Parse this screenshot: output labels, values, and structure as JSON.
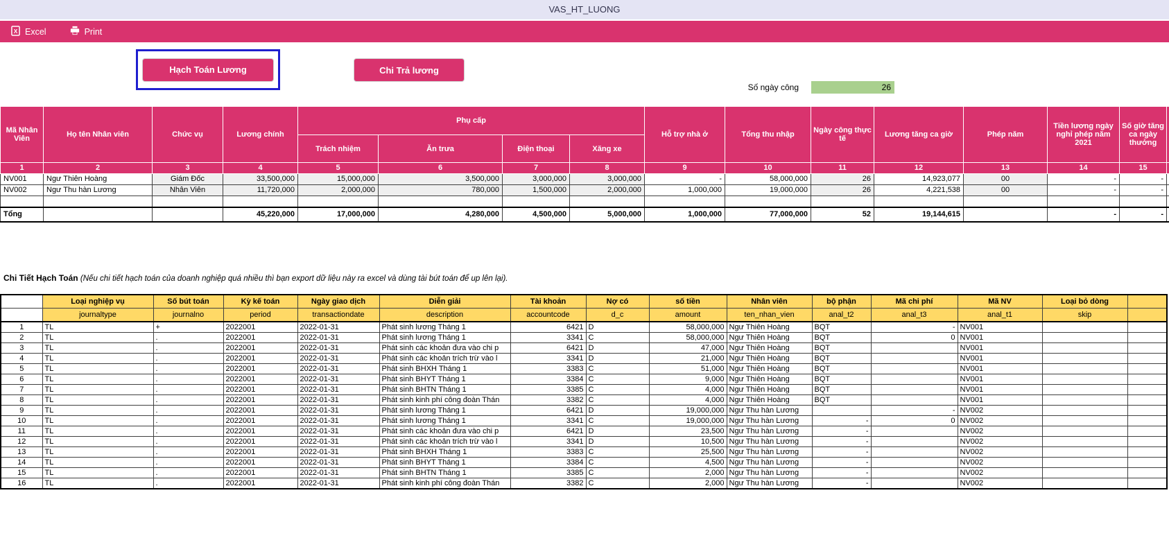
{
  "window": {
    "title": "VAS_HT_LUONG"
  },
  "toolbar": {
    "excel_label": "Excel",
    "print_label": "Print"
  },
  "actions": {
    "hach_toan_luong": "Hạch Toán Lương",
    "chi_tra_luong": "Chi Trả lương"
  },
  "work_days": {
    "label": "Số ngày công",
    "value": "26"
  },
  "colors": {
    "accent_pink": "#d9336e",
    "title_bar_lavender": "#e4e4f4",
    "input_green": "#a9d08e",
    "header_yellow": "#ffd966",
    "focus_blue": "#1f1fcf",
    "shaded_cell_gray": "#efefef"
  },
  "salary_table": {
    "col_numbers": [
      "1",
      "2",
      "3",
      "4",
      "5",
      "6",
      "7",
      "8",
      "9",
      "10",
      "11",
      "12",
      "13",
      "14",
      "15"
    ],
    "headers": {
      "ma_nhan_vien": "Mã Nhân Viên",
      "ho_ten_nhan_vien": "Họ tên Nhân viên",
      "chuc_vu": "Chức vụ",
      "luong_chinh": "Lương chính",
      "phu_cap": "Phụ cấp",
      "trach_nhiem": "Trách nhiệm",
      "an_trua": "Ăn trưa",
      "dien_thoai": "Điện thoại",
      "xang_xe": "Xăng xe",
      "ho_tro_nha_o": "Hỗ trợ nhà ở",
      "tong_thu_nhap": "Tổng thu nhập",
      "ngay_cong_thuc_te": "Ngày công thực tế",
      "luong_tang_ca_gio": "Lương tăng ca giờ",
      "phep_nam": "Phép năm",
      "tien_luong_ngay_nghi_phep": "Tiền lương ngày nghỉ phép năm 2021",
      "so_gio_tang_ca_ngay_thuong": "Số giờ tăng ca ngày thưởng"
    },
    "rows": [
      {
        "cells": [
          "NV001",
          "Ngư Thiên Hoàng",
          "Giám Đốc",
          "33,500,000",
          "15,000,000",
          "3,500,000",
          "3,000,000",
          "3,000,000",
          "-",
          "58,000,000",
          "26",
          "14,923,077",
          "00",
          "-",
          "-"
        ]
      },
      {
        "cells": [
          "NV002",
          "Ngư Thu hàn Lương",
          "Nhân Viên",
          "11,720,000",
          "2,000,000",
          "780,000",
          "1,500,000",
          "2,000,000",
          "1,000,000",
          "19,000,000",
          "26",
          "4,221,538",
          "00",
          "-",
          "-"
        ]
      },
      {
        "cells": [
          "",
          "",
          "",
          "",
          "",
          "",
          "",
          "",
          "",
          "",
          "",
          "",
          "",
          "",
          ""
        ]
      }
    ],
    "total_row": {
      "cells": [
        "Tổng",
        "",
        "",
        "45,220,000",
        "17,000,000",
        "4,280,000",
        "4,500,000",
        "5,000,000",
        "1,000,000",
        "77,000,000",
        "52",
        "19,144,615",
        "",
        "-",
        "-"
      ]
    }
  },
  "detail_section": {
    "title": "Chi Tiết Hạch Toán",
    "note": "(Nếu chi tiết hạch toán của doanh nghiệp quá nhiều thì bạn export dữ liệu này ra excel và dùng tài bút toán để up lên lại)."
  },
  "detail_table": {
    "header_labels": [
      "Loại nghiệp vụ",
      "Số bút toán",
      "Kỳ kế toán",
      "Ngày giao dịch",
      "Diễn giải",
      "Tài khoản",
      "Nợ có",
      "số tiền",
      "Nhân viên",
      "bộ phận",
      "Mã chi phí",
      "Mã NV",
      "Loại bỏ dòng"
    ],
    "field_names": [
      "journaltype",
      "journalno",
      "period",
      "transactiondate",
      "description",
      "accountcode",
      "d_c",
      "amount",
      "ten_nhan_vien",
      "anal_t2",
      "anal_t3",
      "anal_t1",
      "skip"
    ],
    "rows": [
      {
        "num": "1",
        "journaltype": "TL",
        "journalno": "+",
        "period": "2022001",
        "transactiondate": "2022-01-31",
        "description": "Phát sinh lương Tháng 1",
        "accountcode": "6421",
        "d_c": "D",
        "amount": "58,000,000",
        "ten_nhan_vien": "Ngư Thiên Hoàng",
        "anal_t2": "BQT",
        "anal_t3": "-",
        "anal_t1": "NV001",
        "skip": ""
      },
      {
        "num": "2",
        "journaltype": "TL",
        "journalno": ".",
        "period": "2022001",
        "transactiondate": "2022-01-31",
        "description": "Phát sinh lương Tháng 1",
        "accountcode": "3341",
        "d_c": "C",
        "amount": "58,000,000",
        "ten_nhan_vien": "Ngư Thiên Hoàng",
        "anal_t2": "BQT",
        "anal_t3": "0",
        "anal_t1": "NV001",
        "skip": ""
      },
      {
        "num": "3",
        "journaltype": "TL",
        "journalno": ".",
        "period": "2022001",
        "transactiondate": "2022-01-31",
        "description": "Phát sinh các khoản đưa vào chi p",
        "accountcode": "6421",
        "d_c": "D",
        "amount": "47,000",
        "ten_nhan_vien": "Ngư Thiên Hoàng",
        "anal_t2": "BQT",
        "anal_t3": "",
        "anal_t1": "NV001",
        "skip": ""
      },
      {
        "num": "4",
        "journaltype": "TL",
        "journalno": ".",
        "period": "2022001",
        "transactiondate": "2022-01-31",
        "description": "Phát sinh các khoản trích trừ vào l",
        "accountcode": "3341",
        "d_c": "D",
        "amount": "21,000",
        "ten_nhan_vien": "Ngư Thiên Hoàng",
        "anal_t2": "BQT",
        "anal_t3": "",
        "anal_t1": "NV001",
        "skip": ""
      },
      {
        "num": "5",
        "journaltype": "TL",
        "journalno": ".",
        "period": "2022001",
        "transactiondate": "2022-01-31",
        "description": "Phát sinh BHXH Tháng 1",
        "accountcode": "3383",
        "d_c": "C",
        "amount": "51,000",
        "ten_nhan_vien": "Ngư Thiên Hoàng",
        "anal_t2": "BQT",
        "anal_t3": "",
        "anal_t1": "NV001",
        "skip": ""
      },
      {
        "num": "6",
        "journaltype": "TL",
        "journalno": ".",
        "period": "2022001",
        "transactiondate": "2022-01-31",
        "description": "Phát sinh BHYT Tháng 1",
        "accountcode": "3384",
        "d_c": "C",
        "amount": "9,000",
        "ten_nhan_vien": "Ngư Thiên Hoàng",
        "anal_t2": "BQT",
        "anal_t3": "",
        "anal_t1": "NV001",
        "skip": ""
      },
      {
        "num": "7",
        "journaltype": "TL",
        "journalno": ".",
        "period": "2022001",
        "transactiondate": "2022-01-31",
        "description": "Phát sinh BHTN Tháng 1",
        "accountcode": "3385",
        "d_c": "C",
        "amount": "4,000",
        "ten_nhan_vien": "Ngư Thiên Hoàng",
        "anal_t2": "BQT",
        "anal_t3": "",
        "anal_t1": "NV001",
        "skip": ""
      },
      {
        "num": "8",
        "journaltype": "TL",
        "journalno": ".",
        "period": "2022001",
        "transactiondate": "2022-01-31",
        "description": "Phát sinh kinh phí công đoàn Thán",
        "accountcode": "3382",
        "d_c": "C",
        "amount": "4,000",
        "ten_nhan_vien": "Ngư Thiên Hoàng",
        "anal_t2": "BQT",
        "anal_t3": "",
        "anal_t1": "NV001",
        "skip": ""
      },
      {
        "num": "9",
        "journaltype": "TL",
        "journalno": ".",
        "period": "2022001",
        "transactiondate": "2022-01-31",
        "description": "Phát sinh lương Tháng 1",
        "accountcode": "6421",
        "d_c": "D",
        "amount": "19,000,000",
        "ten_nhan_vien": "Ngư Thu hàn Lương",
        "anal_t2": "",
        "anal_t3": "-",
        "anal_t1": "NV002",
        "skip": ""
      },
      {
        "num": "10",
        "journaltype": "TL",
        "journalno": ".",
        "period": "2022001",
        "transactiondate": "2022-01-31",
        "description": "Phát sinh lương Tháng 1",
        "accountcode": "3341",
        "d_c": "C",
        "amount": "19,000,000",
        "ten_nhan_vien": "Ngư Thu hàn Lương",
        "anal_t2": "-",
        "anal_t3": "0",
        "anal_t1": "NV002",
        "skip": ""
      },
      {
        "num": "11",
        "journaltype": "TL",
        "journalno": ".",
        "period": "2022001",
        "transactiondate": "2022-01-31",
        "description": "Phát sinh các khoản đưa vào chi p",
        "accountcode": "6421",
        "d_c": "D",
        "amount": "23,500",
        "ten_nhan_vien": "Ngư Thu hàn Lương",
        "anal_t2": "-",
        "anal_t3": "",
        "anal_t1": "NV002",
        "skip": ""
      },
      {
        "num": "12",
        "journaltype": "TL",
        "journalno": ".",
        "period": "2022001",
        "transactiondate": "2022-01-31",
        "description": "Phát sinh các khoản trích trừ vào l",
        "accountcode": "3341",
        "d_c": "D",
        "amount": "10,500",
        "ten_nhan_vien": "Ngư Thu hàn Lương",
        "anal_t2": "-",
        "anal_t3": "",
        "anal_t1": "NV002",
        "skip": ""
      },
      {
        "num": "13",
        "journaltype": "TL",
        "journalno": ".",
        "period": "2022001",
        "transactiondate": "2022-01-31",
        "description": "Phát sinh BHXH Tháng 1",
        "accountcode": "3383",
        "d_c": "C",
        "amount": "25,500",
        "ten_nhan_vien": "Ngư Thu hàn Lương",
        "anal_t2": "-",
        "anal_t3": "",
        "anal_t1": "NV002",
        "skip": ""
      },
      {
        "num": "14",
        "journaltype": "TL",
        "journalno": ".",
        "period": "2022001",
        "transactiondate": "2022-01-31",
        "description": "Phát sinh BHYT Tháng 1",
        "accountcode": "3384",
        "d_c": "C",
        "amount": "4,500",
        "ten_nhan_vien": "Ngư Thu hàn Lương",
        "anal_t2": "-",
        "anal_t3": "",
        "anal_t1": "NV002",
        "skip": ""
      },
      {
        "num": "15",
        "journaltype": "TL",
        "journalno": ".",
        "period": "2022001",
        "transactiondate": "2022-01-31",
        "description": "Phát sinh BHTN Tháng 1",
        "accountcode": "3385",
        "d_c": "C",
        "amount": "2,000",
        "ten_nhan_vien": "Ngư Thu hàn Lương",
        "anal_t2": "-",
        "anal_t3": "",
        "anal_t1": "NV002",
        "skip": ""
      },
      {
        "num": "16",
        "journaltype": "TL",
        "journalno": ".",
        "period": "2022001",
        "transactiondate": "2022-01-31",
        "description": "Phát sinh kinh phí công đoàn Thán",
        "accountcode": "3382",
        "d_c": "C",
        "amount": "2,000",
        "ten_nhan_vien": "Ngư Thu hàn Lương",
        "anal_t2": "-",
        "anal_t3": "",
        "anal_t1": "NV002",
        "skip": ""
      }
    ]
  }
}
